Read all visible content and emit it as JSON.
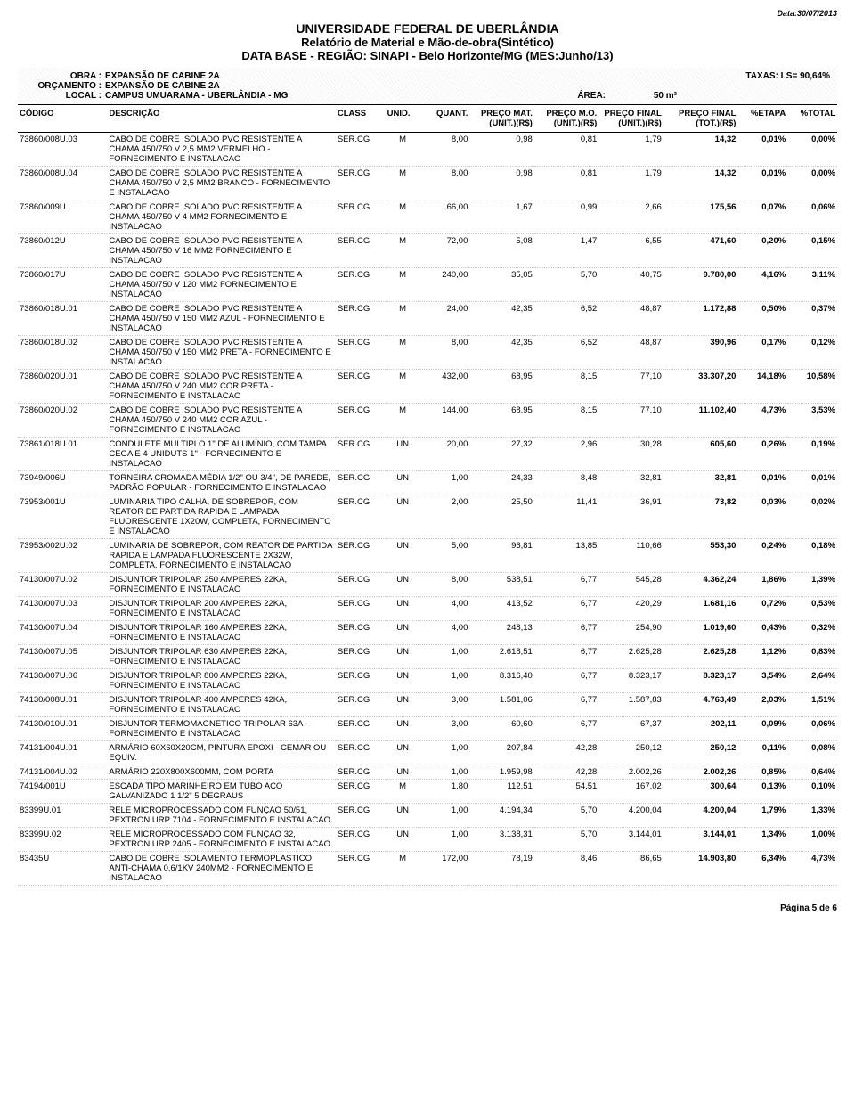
{
  "date_top": "Data:30/07/2013",
  "header": {
    "t1": "UNIVERSIDADE FEDERAL DE UBERLÂNDIA",
    "t2": "Relatório de Material e Mão-de-obra(Sintético)",
    "t3": "DATA BASE - REGIÃO: SINAPI - Belo Horizonte/MG (MES:Junho/13)"
  },
  "meta": {
    "obra_lbl": "OBRA :",
    "obra_val": "EXPANSÃO DE CABINE 2A",
    "orc_lbl": "ORÇAMENTO :",
    "orc_val": "EXPANSÃO DE CABINE 2A",
    "local_lbl": "LOCAL :",
    "local_val": "CAMPUS UMUARAMA - UBERLÂNDIA - MG",
    "taxas": "TAXAS: LS= 90,64%",
    "area_lbl": "ÁREA:",
    "area_val": "50 m²"
  },
  "columns": {
    "codigo": "CÓDIGO",
    "descricao": "DESCRIÇÃO",
    "class": "CLASS",
    "unid": "UNID.",
    "quant": "QUANT.",
    "preco_mat": "PREÇO MAT. (UNIT.)(R$)",
    "preco_mo": "PREÇO M.O. (UNIT.)(R$)",
    "preco_final_u": "PREÇO FINAL (UNIT.)(R$)",
    "preco_final_t": "PREÇO FINAL (TOT.)(R$)",
    "etapa": "%ETAPA",
    "total": "%TOTAL"
  },
  "rows": [
    {
      "codigo": "73860/008U.03",
      "desc": "CABO DE COBRE ISOLADO PVC RESISTENTE A CHAMA 450/750 V 2,5 MM2 VERMELHO - FORNECIMENTO E INSTALACAO",
      "class": "SER.CG",
      "unid": "M",
      "quant": "8,00",
      "pmat": "0,98",
      "pmo": "0,81",
      "pfu": "1,79",
      "pft": "14,32",
      "etapa": "0,01%",
      "total": "0,00%"
    },
    {
      "codigo": "73860/008U.04",
      "desc": "CABO DE COBRE ISOLADO PVC RESISTENTE A CHAMA 450/750 V 2,5 MM2 BRANCO - FORNECIMENTO E INSTALACAO",
      "class": "SER.CG",
      "unid": "M",
      "quant": "8,00",
      "pmat": "0,98",
      "pmo": "0,81",
      "pfu": "1,79",
      "pft": "14,32",
      "etapa": "0,01%",
      "total": "0,00%"
    },
    {
      "codigo": "73860/009U",
      "desc": "CABO DE COBRE ISOLADO PVC RESISTENTE A CHAMA 450/750 V 4 MM2 FORNECIMENTO E INSTALACAO",
      "class": "SER.CG",
      "unid": "M",
      "quant": "66,00",
      "pmat": "1,67",
      "pmo": "0,99",
      "pfu": "2,66",
      "pft": "175,56",
      "etapa": "0,07%",
      "total": "0,06%"
    },
    {
      "codigo": "73860/012U",
      "desc": "CABO DE COBRE ISOLADO PVC RESISTENTE A CHAMA 450/750 V 16 MM2 FORNECIMENTO E INSTALACAO",
      "class": "SER.CG",
      "unid": "M",
      "quant": "72,00",
      "pmat": "5,08",
      "pmo": "1,47",
      "pfu": "6,55",
      "pft": "471,60",
      "etapa": "0,20%",
      "total": "0,15%"
    },
    {
      "codigo": "73860/017U",
      "desc": "CABO DE COBRE ISOLADO PVC RESISTENTE A CHAMA 450/750 V 120 MM2 FORNECIMENTO E INSTALACAO",
      "class": "SER.CG",
      "unid": "M",
      "quant": "240,00",
      "pmat": "35,05",
      "pmo": "5,70",
      "pfu": "40,75",
      "pft": "9.780,00",
      "etapa": "4,16%",
      "total": "3,11%"
    },
    {
      "codigo": "73860/018U.01",
      "desc": "CABO DE COBRE ISOLADO PVC RESISTENTE A CHAMA 450/750 V 150 MM2 AZUL - FORNECIMENTO E INSTALACAO",
      "class": "SER.CG",
      "unid": "M",
      "quant": "24,00",
      "pmat": "42,35",
      "pmo": "6,52",
      "pfu": "48,87",
      "pft": "1.172,88",
      "etapa": "0,50%",
      "total": "0,37%"
    },
    {
      "codigo": "73860/018U.02",
      "desc": "CABO DE COBRE ISOLADO PVC RESISTENTE A CHAMA 450/750 V 150 MM2 PRETA - FORNECIMENTO E INSTALACAO",
      "class": "SER.CG",
      "unid": "M",
      "quant": "8,00",
      "pmat": "42,35",
      "pmo": "6,52",
      "pfu": "48,87",
      "pft": "390,96",
      "etapa": "0,17%",
      "total": "0,12%"
    },
    {
      "codigo": "73860/020U.01",
      "desc": "CABO DE COBRE ISOLADO PVC RESISTENTE A CHAMA 450/750 V 240 MM2 COR PRETA - FORNECIMENTO E INSTALACAO",
      "class": "SER.CG",
      "unid": "M",
      "quant": "432,00",
      "pmat": "68,95",
      "pmo": "8,15",
      "pfu": "77,10",
      "pft": "33.307,20",
      "etapa": "14,18%",
      "total": "10,58%"
    },
    {
      "codigo": "73860/020U.02",
      "desc": "CABO DE COBRE ISOLADO PVC RESISTENTE A CHAMA 450/750 V 240 MM2 COR AZUL - FORNECIMENTO E INSTALACAO",
      "class": "SER.CG",
      "unid": "M",
      "quant": "144,00",
      "pmat": "68,95",
      "pmo": "8,15",
      "pfu": "77,10",
      "pft": "11.102,40",
      "etapa": "4,73%",
      "total": "3,53%"
    },
    {
      "codigo": "73861/018U.01",
      "desc": "CONDULETE MULTIPLO 1\" DE ALUMÍNIO, COM TAMPA CEGA E 4 UNIDUTS 1\" - FORNECIMENTO E INSTALACAO",
      "class": "SER.CG",
      "unid": "UN",
      "quant": "20,00",
      "pmat": "27,32",
      "pmo": "2,96",
      "pfu": "30,28",
      "pft": "605,60",
      "etapa": "0,26%",
      "total": "0,19%"
    },
    {
      "codigo": "73949/006U",
      "desc": "TORNEIRA CROMADA MÉDIA 1/2\" OU 3/4\", DE PAREDE, PADRÃO POPULAR - FORNECIMENTO E INSTALACAO",
      "class": "SER.CG",
      "unid": "UN",
      "quant": "1,00",
      "pmat": "24,33",
      "pmo": "8,48",
      "pfu": "32,81",
      "pft": "32,81",
      "etapa": "0,01%",
      "total": "0,01%"
    },
    {
      "codigo": "73953/001U",
      "desc": "LUMINARIA TIPO CALHA, DE SOBREPOR, COM REATOR DE PARTIDA RAPIDA E LAMPADA FLUORESCENTE 1X20W, COMPLETA, FORNECIMENTO E INSTALACAO",
      "class": "SER.CG",
      "unid": "UN",
      "quant": "2,00",
      "pmat": "25,50",
      "pmo": "11,41",
      "pfu": "36,91",
      "pft": "73,82",
      "etapa": "0,03%",
      "total": "0,02%"
    },
    {
      "codigo": "73953/002U.02",
      "desc": "LUMINARIA DE SOBREPOR, COM REATOR DE PARTIDA RAPIDA E LAMPADA FLUORESCENTE 2X32W, COMPLETA, FORNECIMENTO E INSTALACAO",
      "class": "SER.CG",
      "unid": "UN",
      "quant": "5,00",
      "pmat": "96,81",
      "pmo": "13,85",
      "pfu": "110,66",
      "pft": "553,30",
      "etapa": "0,24%",
      "total": "0,18%"
    },
    {
      "codigo": "74130/007U.02",
      "desc": "DISJUNTOR TRIPOLAR 250 AMPERES 22KA, FORNECIMENTO E INSTALACAO",
      "class": "SER.CG",
      "unid": "UN",
      "quant": "8,00",
      "pmat": "538,51",
      "pmo": "6,77",
      "pfu": "545,28",
      "pft": "4.362,24",
      "etapa": "1,86%",
      "total": "1,39%"
    },
    {
      "codigo": "74130/007U.03",
      "desc": "DISJUNTOR TRIPOLAR 200 AMPERES 22KA, FORNECIMENTO E INSTALACAO",
      "class": "SER.CG",
      "unid": "UN",
      "quant": "4,00",
      "pmat": "413,52",
      "pmo": "6,77",
      "pfu": "420,29",
      "pft": "1.681,16",
      "etapa": "0,72%",
      "total": "0,53%"
    },
    {
      "codigo": "74130/007U.04",
      "desc": "DISJUNTOR TRIPOLAR 160 AMPERES 22KA, FORNECIMENTO E INSTALACAO",
      "class": "SER.CG",
      "unid": "UN",
      "quant": "4,00",
      "pmat": "248,13",
      "pmo": "6,77",
      "pfu": "254,90",
      "pft": "1.019,60",
      "etapa": "0,43%",
      "total": "0,32%"
    },
    {
      "codigo": "74130/007U.05",
      "desc": "DISJUNTOR TRIPOLAR 630 AMPERES 22KA, FORNECIMENTO E INSTALACAO",
      "class": "SER.CG",
      "unid": "UN",
      "quant": "1,00",
      "pmat": "2.618,51",
      "pmo": "6,77",
      "pfu": "2.625,28",
      "pft": "2.625,28",
      "etapa": "1,12%",
      "total": "0,83%"
    },
    {
      "codigo": "74130/007U.06",
      "desc": "DISJUNTOR TRIPOLAR 800 AMPERES 22KA, FORNECIMENTO E INSTALACAO",
      "class": "SER.CG",
      "unid": "UN",
      "quant": "1,00",
      "pmat": "8.316,40",
      "pmo": "6,77",
      "pfu": "8.323,17",
      "pft": "8.323,17",
      "etapa": "3,54%",
      "total": "2,64%"
    },
    {
      "codigo": "74130/008U.01",
      "desc": "DISJUNTOR TRIPOLAR 400 AMPERES 42KA, FORNECIMENTO E INSTALACAO",
      "class": "SER.CG",
      "unid": "UN",
      "quant": "3,00",
      "pmat": "1.581,06",
      "pmo": "6,77",
      "pfu": "1.587,83",
      "pft": "4.763,49",
      "etapa": "2,03%",
      "total": "1,51%"
    },
    {
      "codigo": "74130/010U.01",
      "desc": "DISJUNTOR TERMOMAGNETICO TRIPOLAR 63A - FORNECIMENTO E INSTALACAO",
      "class": "SER.CG",
      "unid": "UN",
      "quant": "3,00",
      "pmat": "60,60",
      "pmo": "6,77",
      "pfu": "67,37",
      "pft": "202,11",
      "etapa": "0,09%",
      "total": "0,06%"
    },
    {
      "codigo": "74131/004U.01",
      "desc": "ARMÁRIO 60X60X20CM, PINTURA EPOXI - CEMAR OU EQUIV.",
      "class": "SER.CG",
      "unid": "UN",
      "quant": "1,00",
      "pmat": "207,84",
      "pmo": "42,28",
      "pfu": "250,12",
      "pft": "250,12",
      "etapa": "0,11%",
      "total": "0,08%"
    },
    {
      "codigo": "74131/004U.02",
      "desc": "ARMÁRIO 220X800X600MM, COM PORTA",
      "class": "SER.CG",
      "unid": "UN",
      "quant": "1,00",
      "pmat": "1.959,98",
      "pmo": "42,28",
      "pfu": "2.002,26",
      "pft": "2.002,26",
      "etapa": "0,85%",
      "total": "0,64%"
    },
    {
      "codigo": "74194/001U",
      "desc": "ESCADA TIPO MARINHEIRO EM TUBO ACO GALVANIZADO 1 1/2\" 5 DEGRAUS",
      "class": "SER.CG",
      "unid": "M",
      "quant": "1,80",
      "pmat": "112,51",
      "pmo": "54,51",
      "pfu": "167,02",
      "pft": "300,64",
      "etapa": "0,13%",
      "total": "0,10%"
    },
    {
      "codigo": "83399U.01",
      "desc": "RELE MICROPROCESSADO COM FUNÇÃO 50/51, PEXTRON URP 7104 - FORNECIMENTO E INSTALACAO",
      "class": "SER.CG",
      "unid": "UN",
      "quant": "1,00",
      "pmat": "4.194,34",
      "pmo": "5,70",
      "pfu": "4.200,04",
      "pft": "4.200,04",
      "etapa": "1,79%",
      "total": "1,33%"
    },
    {
      "codigo": "83399U.02",
      "desc": "RELE MICROPROCESSADO COM FUNÇÃO 32, PEXTRON URP 2405 - FORNECIMENTO E INSTALACAO",
      "class": "SER.CG",
      "unid": "UN",
      "quant": "1,00",
      "pmat": "3.138,31",
      "pmo": "5,70",
      "pfu": "3.144,01",
      "pft": "3.144,01",
      "etapa": "1,34%",
      "total": "1,00%"
    },
    {
      "codigo": "83435U",
      "desc": "CABO DE COBRE ISOLAMENTO TERMOPLASTICO ANTI-CHAMA 0,6/1KV 240MM2 - FORNECIMENTO E INSTALACAO",
      "class": "SER.CG",
      "unid": "M",
      "quant": "172,00",
      "pmat": "78,19",
      "pmo": "8,46",
      "pfu": "86,65",
      "pft": "14.903,80",
      "etapa": "6,34%",
      "total": "4,73%"
    }
  ],
  "footer": "Página 5 de 6"
}
